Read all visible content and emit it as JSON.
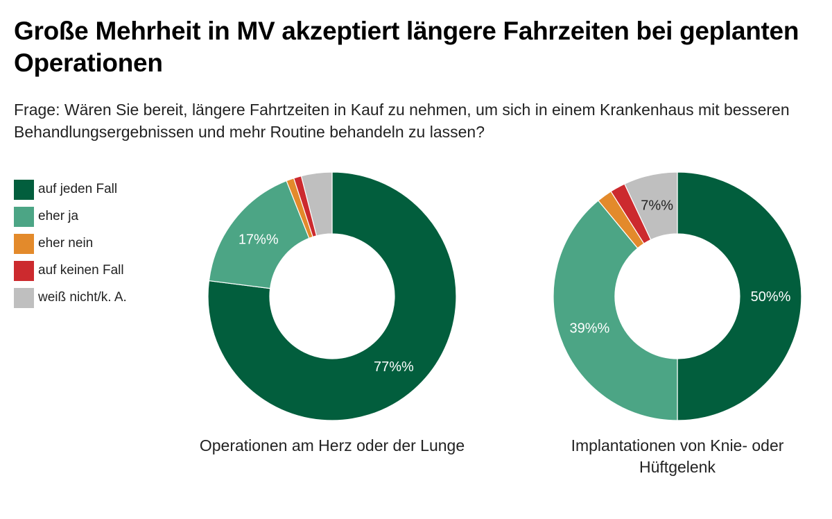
{
  "header": {
    "title": "Große Mehrheit in MV akzeptiert längere Fahrzeiten bei geplanten Operationen",
    "subtitle": "Frage: Wären Sie bereit, längere Fahrtzeiten in Kauf zu nehmen, um sich in einem Krankenhaus mit besseren Behandlungsergebnissen und mehr Routine behandeln zu lassen?"
  },
  "legend": [
    {
      "label": "auf jeden Fall",
      "color": "#025e3d"
    },
    {
      "label": "eher ja",
      "color": "#4ca585"
    },
    {
      "label": "eher nein",
      "color": "#e38a2b"
    },
    {
      "label": "auf keinen Fall",
      "color": "#cc2a2e"
    },
    {
      "label": "weiß nicht/k. A.",
      "color": "#bfbfbf"
    }
  ],
  "chart_data": [
    {
      "type": "pie",
      "donut": true,
      "title": "Operationen am Herz oder der Lunge",
      "categories": [
        "auf jeden Fall",
        "eher ja",
        "eher nein",
        "auf keinen Fall",
        "weiß nicht/k. A."
      ],
      "values": [
        77,
        17,
        1,
        1,
        4
      ],
      "labels": [
        "77%%",
        "17%%",
        "",
        "",
        ""
      ],
      "label_colors": [
        "#ffffff",
        "#ffffff",
        "",
        "",
        ""
      ]
    },
    {
      "type": "pie",
      "donut": true,
      "title": "Implantationen von Knie- oder Hüftgelenk",
      "categories": [
        "auf jeden Fall",
        "eher ja",
        "eher nein",
        "auf keinen Fall",
        "weiß nicht/k. A."
      ],
      "values": [
        50,
        39,
        2,
        2,
        7
      ],
      "labels": [
        "50%%",
        "39%%",
        "",
        "",
        "7%%"
      ],
      "label_colors": [
        "#ffffff",
        "#ffffff",
        "",
        "",
        "#222222"
      ]
    }
  ]
}
